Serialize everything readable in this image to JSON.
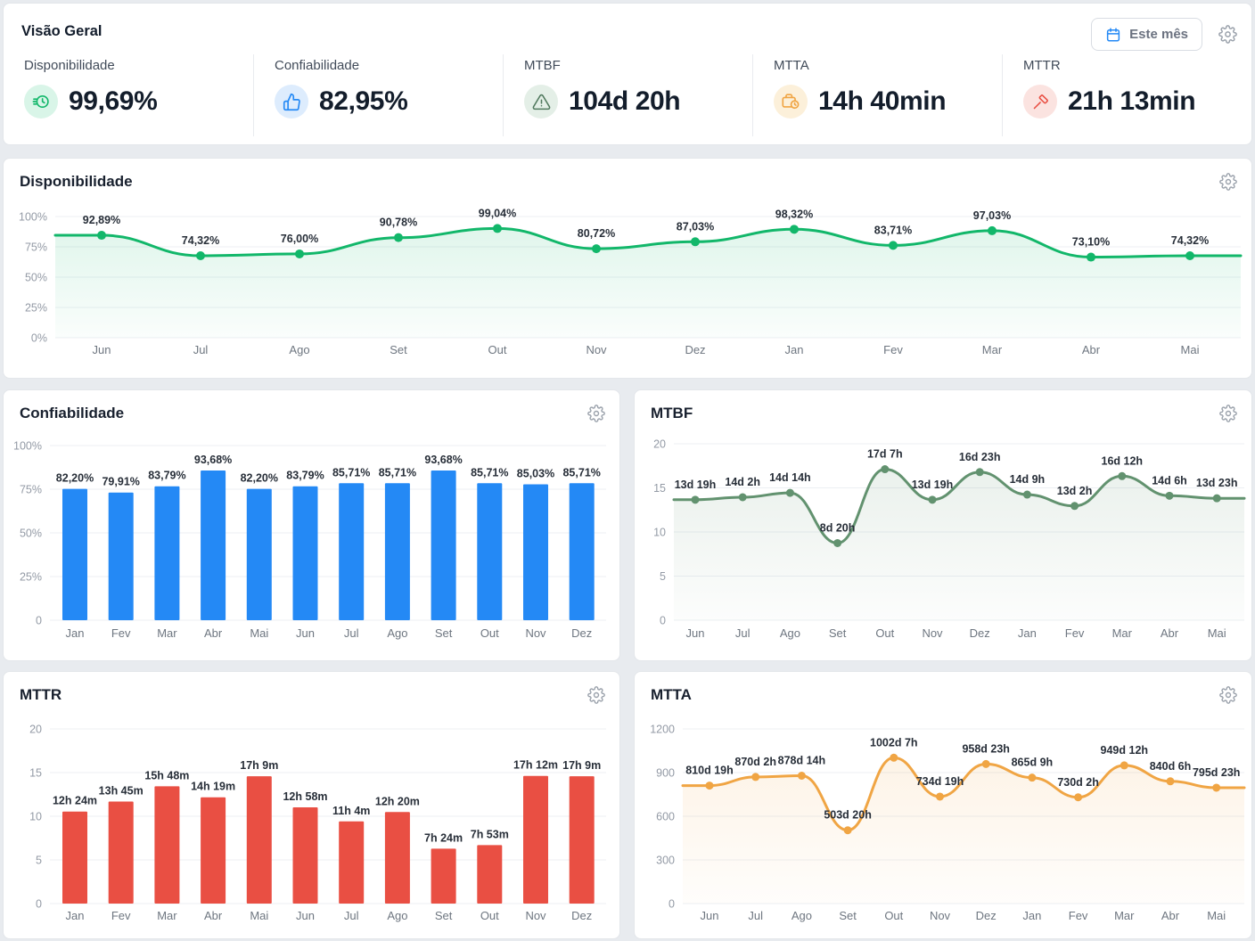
{
  "page": {
    "background": "#e8ebef"
  },
  "header": {
    "title": "Visão Geral",
    "period_button": {
      "label": "Este mês",
      "icon": "calendar-icon",
      "icon_color": "#2489f5"
    },
    "settings_icon": "gear-icon",
    "kpis": [
      {
        "label": "Disponibilidade",
        "value": "99,69%",
        "icon": "clock-fast-icon",
        "icon_color": "#12b76a",
        "icon_bg": "#d9f5e8"
      },
      {
        "label": "Confiabilidade",
        "value": "82,95%",
        "icon": "thumbs-up-icon",
        "icon_color": "#2489f5",
        "icon_bg": "#ddecfd"
      },
      {
        "label": "MTBF",
        "value": "104d 20h",
        "icon": "warning-triangle-icon",
        "icon_color": "#50795d",
        "icon_bg": "#e4efe7"
      },
      {
        "label": "MTTA",
        "value": "14h 40min",
        "icon": "briefcase-clock-icon",
        "icon_color": "#f0a544",
        "icon_bg": "#fcf0da"
      },
      {
        "label": "MTTR",
        "value": "21h 13min",
        "icon": "hammer-icon",
        "icon_color": "#e94f43",
        "icon_bg": "#fbe3e0"
      }
    ]
  },
  "chart_data": [
    {
      "id": "disponibilidade",
      "type": "line",
      "title": "Disponibilidade",
      "settings_icon": "gear-icon",
      "categories": [
        "Jun",
        "Jul",
        "Ago",
        "Set",
        "Out",
        "Nov",
        "Dez",
        "Jan",
        "Fev",
        "Mar",
        "Abr",
        "Mai"
      ],
      "values": [
        92.89,
        74.32,
        76.0,
        90.78,
        99.04,
        80.72,
        87.03,
        98.32,
        83.71,
        97.03,
        73.1,
        74.32
      ],
      "labels": [
        "92,89%",
        "74,32%",
        "76,00%",
        "90,78%",
        "99,04%",
        "80,72%",
        "87,03%",
        "98,32%",
        "83,71%",
        "97,03%",
        "73,10%",
        "74,32%"
      ],
      "y_ticks": [
        "100%",
        "75%",
        "50%",
        "25%",
        "0%"
      ],
      "ylim": [
        0,
        100
      ],
      "grid": true,
      "legend": "none",
      "color": "#12b76a"
    },
    {
      "id": "confiabilidade",
      "type": "bar",
      "title": "Confiabilidade",
      "settings_icon": "gear-icon",
      "categories": [
        "Jan",
        "Fev",
        "Mar",
        "Abr",
        "Mai",
        "Jun",
        "Jul",
        "Ago",
        "Set",
        "Out",
        "Nov",
        "Dez"
      ],
      "values": [
        82.2,
        79.91,
        83.79,
        93.68,
        82.2,
        83.79,
        85.71,
        85.71,
        93.68,
        85.71,
        85.03,
        85.71
      ],
      "labels": [
        "82,20%",
        "79,91%",
        "83,79%",
        "93,68%",
        "82,20%",
        "83,79%",
        "85,71%",
        "85,71%",
        "93,68%",
        "85,71%",
        "85,03%",
        "85,71%"
      ],
      "y_ticks": [
        "100%",
        "75%",
        "50%",
        "25%",
        "0"
      ],
      "ylim": [
        0,
        100
      ],
      "grid": true,
      "legend": "none",
      "color": "#2489f5"
    },
    {
      "id": "mtbf",
      "type": "line",
      "title": "MTBF",
      "settings_icon": "gear-icon",
      "categories": [
        "Jun",
        "Jul",
        "Ago",
        "Set",
        "Out",
        "Nov",
        "Dez",
        "Jan",
        "Fev",
        "Mar",
        "Abr",
        "Mai"
      ],
      "values": [
        13.79,
        14.08,
        14.58,
        8.83,
        17.29,
        13.79,
        16.96,
        14.38,
        13.08,
        16.5,
        14.25,
        13.96
      ],
      "labels": [
        "13d 19h",
        "14d 2h",
        "14d 14h",
        "8d 20h",
        "17d 7h",
        "13d 19h",
        "16d 23h",
        "14d 9h",
        "13d 2h",
        "16d 12h",
        "14d 6h",
        "13d 23h"
      ],
      "y_ticks": [
        "20",
        "15",
        "10",
        "5",
        "0"
      ],
      "ylim": [
        0,
        20
      ],
      "grid": true,
      "legend": "none",
      "color": "#62926f"
    },
    {
      "id": "mttr",
      "type": "bar",
      "title": "MTTR",
      "settings_icon": "gear-icon",
      "categories": [
        "Jan",
        "Fev",
        "Mar",
        "Abr",
        "Mai",
        "Jun",
        "Jul",
        "Ago",
        "Set",
        "Out",
        "Nov",
        "Dez"
      ],
      "values": [
        12.4,
        13.75,
        15.8,
        14.32,
        17.15,
        12.97,
        11.07,
        12.33,
        7.4,
        7.88,
        17.2,
        17.15
      ],
      "labels": [
        "12h 24m",
        "13h 45m",
        "15h 48m",
        "14h 19m",
        "17h 9m",
        "12h 58m",
        "11h 4m",
        "12h 20m",
        "7h 24m",
        "7h 53m",
        "17h 12m",
        "17h 9m"
      ],
      "y_ticks": [
        "20",
        "15",
        "10",
        "5",
        "0"
      ],
      "ylim": [
        0,
        20
      ],
      "grid": true,
      "legend": "none",
      "color": "#e94f43"
    },
    {
      "id": "mtta",
      "type": "line",
      "title": "MTTA",
      "settings_icon": "gear-icon",
      "categories": [
        "Jun",
        "Jul",
        "Ago",
        "Set",
        "Out",
        "Nov",
        "Dez",
        "Jan",
        "Fev",
        "Mar",
        "Abr",
        "Mai"
      ],
      "values": [
        810.79,
        870.08,
        878.58,
        503.83,
        1002.29,
        734.79,
        958.96,
        865.38,
        730.08,
        949.5,
        840.25,
        795.96
      ],
      "labels": [
        "810d 19h",
        "870d 2h",
        "878d 14h",
        "503d 20h",
        "1002d 7h",
        "734d 19h",
        "958d 23h",
        "865d 9h",
        "730d 2h",
        "949d 12h",
        "840d 6h",
        "795d 23h"
      ],
      "y_ticks": [
        "1200",
        "900",
        "600",
        "300",
        "0"
      ],
      "ylim": [
        0,
        1200
      ],
      "grid": true,
      "legend": "none",
      "color": "#f0a544"
    }
  ]
}
